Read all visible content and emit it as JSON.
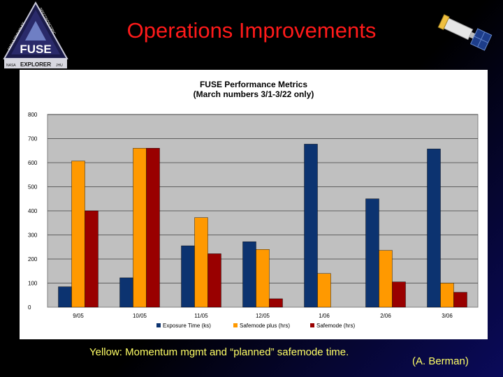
{
  "slide": {
    "title": "Operations Improvements",
    "caption": "Yellow: Momentum mgmt and “planned” safemode time.",
    "credit": "(A. Berman)"
  },
  "logo": {
    "text_left": "FAR ULTRAVIOLET",
    "text_right": "SPECTROSCOPIC",
    "main": "FUSE",
    "bottom": "EXPLORER",
    "left_small": "NASA",
    "right_small": "JHU"
  },
  "colors": {
    "title": "#ff1a1a",
    "caption": "#ffff66",
    "exposure": "#0c3370",
    "safemode_plus": "#ff9900",
    "safemode": "#990000",
    "plot_bg": "#c0c0c0"
  },
  "chart_data": {
    "type": "bar",
    "title": "FUSE Performance Metrics",
    "subtitle": "(March numbers 3/1-3/22 only)",
    "categories": [
      "9/05",
      "10/05",
      "11/05",
      "12/05",
      "1/06",
      "2/06",
      "3/06"
    ],
    "series": [
      {
        "name": "Exposure Time (ks)",
        "color": "#0c3370",
        "values": [
          85,
          122,
          255,
          272,
          677,
          450,
          657
        ]
      },
      {
        "name": "Safemode plus (hrs)",
        "color": "#ff9900",
        "values": [
          607,
          660,
          372,
          240,
          140,
          236,
          100
        ]
      },
      {
        "name": "Safemode (hrs)",
        "color": "#990000",
        "values": [
          400,
          660,
          222,
          35,
          0,
          105,
          62
        ]
      }
    ],
    "yticks": [
      "0",
      "100",
      "200",
      "300",
      "400",
      "500",
      "600",
      "700",
      "800"
    ],
    "ylim": [
      0,
      800
    ],
    "grid": true,
    "legend": "bottom"
  }
}
